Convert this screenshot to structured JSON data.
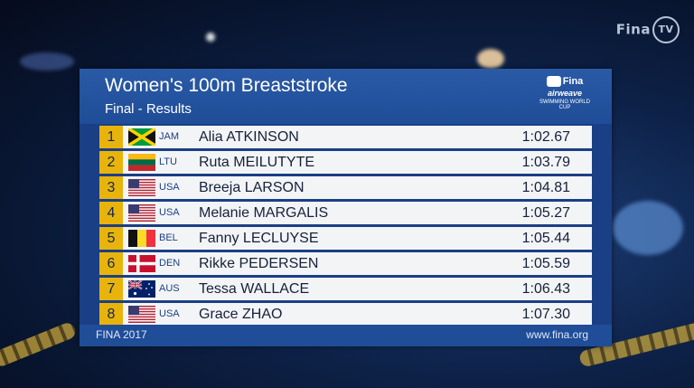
{
  "broadcaster": {
    "logo_text": "Fina",
    "logo_suffix": "TV"
  },
  "board": {
    "title": "Women's 100m Breaststroke",
    "subtitle": "Final - Results",
    "sponsor": {
      "line1": "Fina",
      "line2": "airweave",
      "line3": "SWIMMING WORLD CUP"
    }
  },
  "results": [
    {
      "rank": "1",
      "country": "JAM",
      "flag": "jamaica-flag-icon",
      "name": "Alia ATKINSON",
      "time": "1:02.67"
    },
    {
      "rank": "2",
      "country": "LTU",
      "flag": "lithuania-flag-icon",
      "name": "Ruta MEILUTYTE",
      "time": "1:03.79"
    },
    {
      "rank": "3",
      "country": "USA",
      "flag": "usa-flag-icon",
      "name": "Breeja LARSON",
      "time": "1:04.81"
    },
    {
      "rank": "4",
      "country": "USA",
      "flag": "usa-flag-icon",
      "name": "Melanie MARGALIS",
      "time": "1:05.27"
    },
    {
      "rank": "5",
      "country": "BEL",
      "flag": "belgium-flag-icon",
      "name": "Fanny LECLUYSE",
      "time": "1:05.44"
    },
    {
      "rank": "6",
      "country": "DEN",
      "flag": "denmark-flag-icon",
      "name": "Rikke PEDERSEN",
      "time": "1:05.59"
    },
    {
      "rank": "7",
      "country": "AUS",
      "flag": "australia-flag-icon",
      "name": "Tessa WALLACE",
      "time": "1:06.43"
    },
    {
      "rank": "8",
      "country": "USA",
      "flag": "usa-flag-icon",
      "name": "Grace ZHAO",
      "time": "1:07.30"
    }
  ],
  "footer": {
    "left": "FINA 2017",
    "right": "www.fina.org"
  },
  "colors": {
    "accent": "#e8b40c",
    "board": "#1b3f86",
    "header": "#2a5aa6"
  }
}
